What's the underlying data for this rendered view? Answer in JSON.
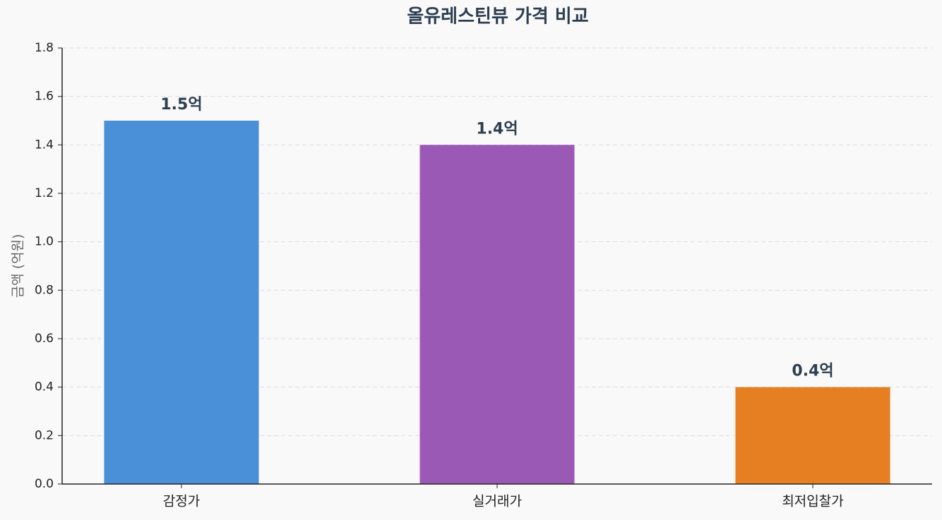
{
  "chart_data": {
    "type": "bar",
    "title": "올유레스틴뷰 가격 비교",
    "y_label": "금액 (억원)",
    "categories": [
      "감정가",
      "실거래가",
      "최저입찰가"
    ],
    "values": [
      1.5,
      1.4,
      0.4
    ],
    "value_labels": [
      "1.5억",
      "1.4억",
      "0.4억"
    ],
    "colors": [
      "#4a90d9",
      "#9b59b6",
      "#e67e22"
    ],
    "ylim": [
      0,
      1.8
    ],
    "yticks": [
      {
        "value": 0,
        "label": "0.0"
      },
      0.2,
      0.4,
      0.6,
      0.8,
      {
        "value": 1,
        "label": "1.0"
      },
      1.2,
      1.4,
      1.6,
      1.8
    ],
    "grid": true
  }
}
